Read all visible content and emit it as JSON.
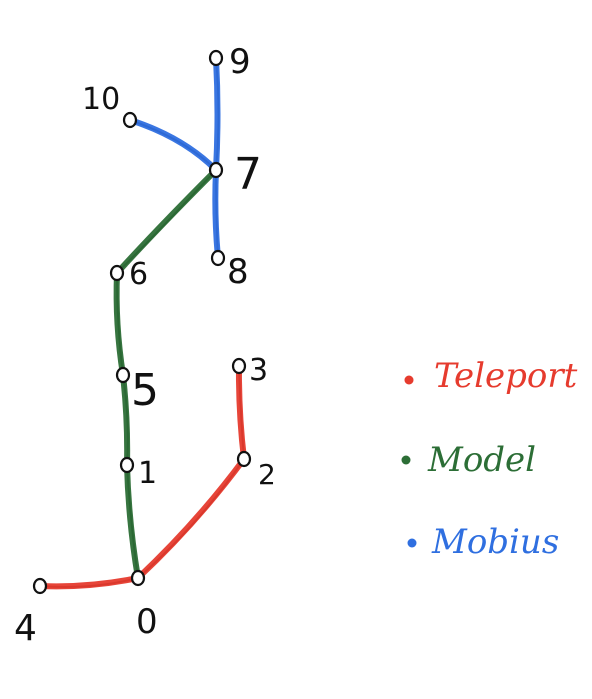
{
  "colors": {
    "teleport": "#e63b2e",
    "model": "#2c6e36",
    "mobius": "#2f6fe0",
    "ink": "#111111"
  },
  "nodes": [
    {
      "id": "0",
      "label": "0"
    },
    {
      "id": "1",
      "label": "1"
    },
    {
      "id": "2",
      "label": "2"
    },
    {
      "id": "3",
      "label": "3"
    },
    {
      "id": "4",
      "label": "4"
    },
    {
      "id": "5",
      "label": "5"
    },
    {
      "id": "6",
      "label": "6"
    },
    {
      "id": "7",
      "label": "7"
    },
    {
      "id": "8",
      "label": "8"
    },
    {
      "id": "9",
      "label": "9"
    },
    {
      "id": "10",
      "label": "10"
    }
  ],
  "edges": [
    {
      "from": "0",
      "to": "1",
      "type": "model"
    },
    {
      "from": "1",
      "to": "5",
      "type": "model"
    },
    {
      "from": "5",
      "to": "6",
      "type": "model"
    },
    {
      "from": "6",
      "to": "7",
      "type": "model"
    },
    {
      "from": "0",
      "to": "4",
      "type": "teleport"
    },
    {
      "from": "0",
      "to": "2",
      "type": "teleport"
    },
    {
      "from": "2",
      "to": "3",
      "type": "teleport"
    },
    {
      "from": "7",
      "to": "9",
      "type": "mobius"
    },
    {
      "from": "7",
      "to": "8",
      "type": "mobius"
    },
    {
      "from": "7",
      "to": "10",
      "type": "mobius"
    }
  ],
  "legend": [
    {
      "key": "teleport",
      "label": "Teleport"
    },
    {
      "key": "model",
      "label": "Model"
    },
    {
      "key": "mobius",
      "label": "Mobius"
    }
  ]
}
